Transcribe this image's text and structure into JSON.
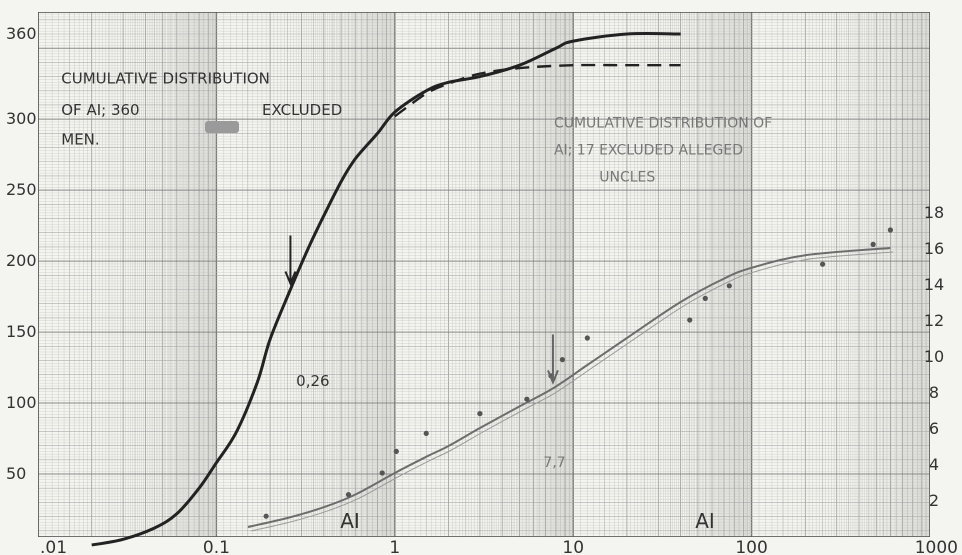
{
  "chart_data": {
    "type": "line",
    "title": "",
    "x_scale": "log",
    "x_range": [
      0.01,
      1000
    ],
    "x_ticks": [
      {
        "value": 0.01,
        "label": ".01"
      },
      {
        "value": 0.1,
        "label": "0.1"
      },
      {
        "value": 1,
        "label": "1"
      },
      {
        "value": 10,
        "label": "10"
      },
      {
        "value": 100,
        "label": "100"
      },
      {
        "value": 1000,
        "label": "1000"
      }
    ],
    "x_labels": [
      "AI",
      "AI"
    ],
    "y_left": {
      "range": [
        0,
        360
      ],
      "ticks": [
        {
          "value": 50,
          "label": "50"
        },
        {
          "value": 100,
          "label": "100"
        },
        {
          "value": 150,
          "label": "150"
        },
        {
          "value": 200,
          "label": "200"
        },
        {
          "value": 250,
          "label": "250"
        },
        {
          "value": 300,
          "label": "300"
        },
        {
          "value": 360,
          "label": "360"
        }
      ]
    },
    "y_right": {
      "range": [
        0,
        18
      ],
      "ticks": [
        {
          "value": 2,
          "label": "2"
        },
        {
          "value": 4,
          "label": "4"
        },
        {
          "value": 6,
          "label": "6"
        },
        {
          "value": 8,
          "label": "8"
        },
        {
          "value": 10,
          "label": "10"
        },
        {
          "value": 12,
          "label": "12"
        },
        {
          "value": 14,
          "label": "14"
        },
        {
          "value": 16,
          "label": "16"
        },
        {
          "value": 18,
          "label": "18"
        }
      ]
    },
    "series": [
      {
        "name": "",
        "axis": "left",
        "style": "solid",
        "x": [
          0.02,
          0.03,
          0.045,
          0.06,
          0.08,
          0.1,
          0.13,
          0.17,
          0.2,
          0.26,
          0.33,
          0.4,
          0.5,
          0.6,
          0.8,
          1,
          1.5,
          2,
          3,
          5,
          8,
          10,
          20,
          40
        ],
        "y": [
          0,
          4,
          12,
          22,
          40,
          58,
          80,
          115,
          145,
          180,
          210,
          232,
          256,
          272,
          290,
          305,
          320,
          326,
          330,
          338,
          350,
          355,
          360,
          360
        ]
      },
      {
        "name": "",
        "axis": "left",
        "style": "dashed",
        "x": [
          1,
          1.5,
          2,
          3,
          5,
          10,
          20,
          40
        ],
        "y": [
          302,
          318,
          325,
          332,
          336,
          338,
          338,
          338
        ]
      },
      {
        "name": "",
        "axis": "right",
        "style": "solid",
        "x": [
          0.15,
          0.25,
          0.4,
          0.6,
          1,
          1.5,
          2,
          3,
          5,
          7.7,
          12,
          20,
          40,
          70,
          100,
          200,
          600
        ],
        "y": [
          0.5,
          1.0,
          1.6,
          2.3,
          3.5,
          4.4,
          5.0,
          6.0,
          7.2,
          8.2,
          9.5,
          11.0,
          13.0,
          14.3,
          14.9,
          15.6,
          16.0
        ]
      },
      {
        "name": "",
        "axis": "right",
        "style": "points",
        "x": [
          0.19,
          0.55,
          0.85,
          1.02,
          1.5,
          3,
          5.5,
          7.5,
          8.7,
          12,
          45,
          55,
          75,
          250,
          480,
          600
        ],
        "y": [
          1.1,
          2.3,
          3.5,
          4.7,
          5.7,
          6.8,
          7.6,
          8.9,
          9.8,
          11.0,
          12.0,
          13.2,
          13.9,
          15.1,
          16.2,
          17.0
        ]
      }
    ],
    "annotations": [
      {
        "text": "CUMULATIVE DISTRIBUTION",
        "x": 0.0135,
        "y": 325
      },
      {
        "text": "OF AI; 360",
        "x": 0.0135,
        "y": 303
      },
      {
        "text": "EXCLUDED",
        "x": 0.18,
        "y": 303
      },
      {
        "text": "MEN.",
        "x": 0.0135,
        "y": 282
      },
      {
        "text": "CUMULATIVE DISTRIBUTION OF",
        "x": 7.8,
        "y": 294
      },
      {
        "text": "AI; 17 EXCLUDED ALLEGED",
        "x": 7.8,
        "y": 275
      },
      {
        "text": "UNCLES",
        "x": 14,
        "y": 256
      },
      {
        "text": "0,26",
        "x": 0.28,
        "y": 112
      },
      {
        "text": "7,7",
        "x": 6.8,
        "y": 55
      }
    ],
    "markers": [
      {
        "label": "0,26",
        "x": 0.26,
        "axis": "left",
        "y": 180
      },
      {
        "label": "7,7",
        "x": 7.7,
        "axis": "right",
        "y": 8.2
      }
    ]
  }
}
